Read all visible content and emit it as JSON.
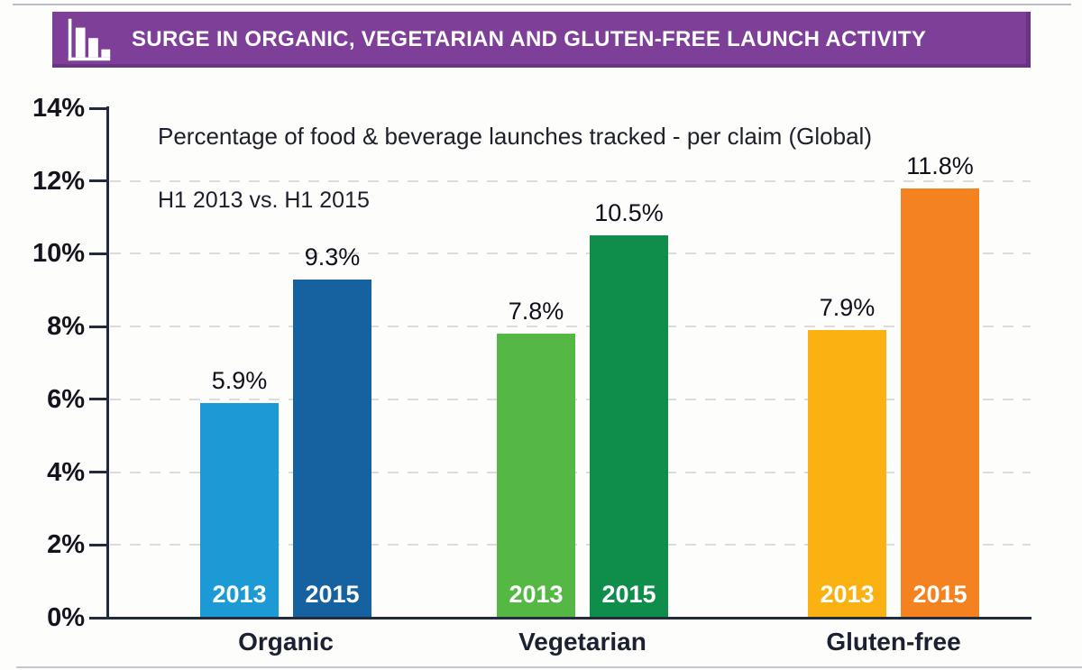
{
  "header": {
    "title": "SURGE IN ORGANIC, VEGETARIAN AND GLUTEN-FREE LAUNCH ACTIVITY",
    "bg_color": "#7e3f98"
  },
  "chart_data": {
    "type": "bar",
    "title": "Percentage of food & beverage launches tracked - per claim (Global)",
    "comparison_label": "H1 2013 vs. H1 2015",
    "categories": [
      "Organic",
      "Vegetarian",
      "Gluten-free"
    ],
    "series": [
      {
        "name": "2013",
        "values": [
          5.9,
          7.8,
          7.9
        ],
        "labels": [
          "5.9%",
          "7.8%",
          "7.9%"
        ],
        "colors": [
          "#1b9ad6",
          "#55b845",
          "#f9b212"
        ]
      },
      {
        "name": "2015",
        "values": [
          9.3,
          10.5,
          11.8
        ],
        "labels": [
          "9.3%",
          "10.5%",
          "11.8%"
        ],
        "colors": [
          "#16619f",
          "#0f8d4a",
          "#f58220"
        ]
      }
    ],
    "y_axis": {
      "ylim": [
        0,
        14
      ],
      "ticks": [
        {
          "label": "0%",
          "value": 0
        },
        {
          "label": "2%",
          "value": 2
        },
        {
          "label": "4%",
          "value": 4
        },
        {
          "label": "6%",
          "value": 6
        },
        {
          "label": "8%",
          "value": 8
        },
        {
          "label": "10%",
          "value": 10
        },
        {
          "label": "12%",
          "value": 12
        },
        {
          "label": "14%",
          "value": 14
        }
      ],
      "grid_values": [
        2,
        4,
        6,
        8,
        10,
        12
      ]
    },
    "grid": true,
    "legend_position": "none"
  }
}
